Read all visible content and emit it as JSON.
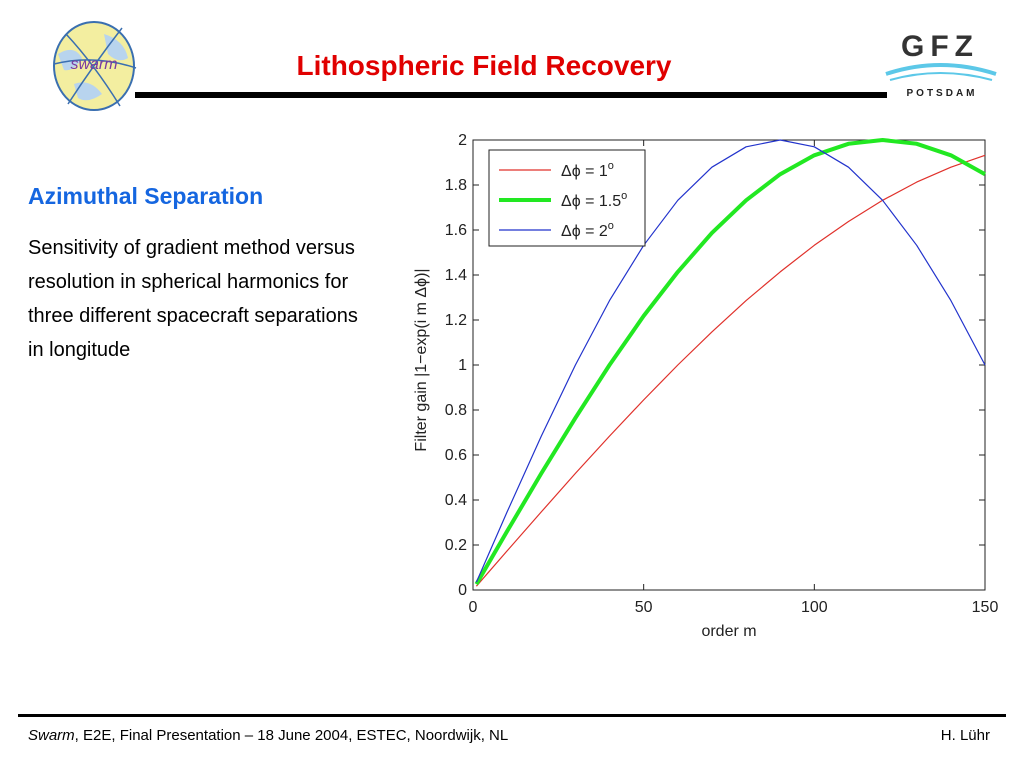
{
  "header": {
    "title": "Lithospheric Field Recovery",
    "logo_left_text": "swarm",
    "logo_right_text": "GFZ",
    "logo_right_subtext": "POTSDAM"
  },
  "content": {
    "heading": "Azimuthal Separation",
    "body": "Sensitivity of gradient method versus resolution in spherical harmonics for three different spacecraft separations in longitude"
  },
  "footer": {
    "left_italic": "Swarm",
    "left_rest": ", E2E, Final Presentation – 18 June 2004, ESTEC, Noordwijk, NL",
    "right": "H. Lühr"
  },
  "chart_data": {
    "type": "line",
    "title": "",
    "xlabel": "order m",
    "ylabel": "Filter gain |1−exp(i m Δϕ)|",
    "xlim": [
      0,
      150
    ],
    "ylim": [
      0,
      2
    ],
    "xticks": [
      "0",
      "50",
      "100",
      "150"
    ],
    "yticks": [
      "0",
      "0.2",
      "0.4",
      "0.6",
      "0.8",
      "1",
      "1.2",
      "1.4",
      "1.6",
      "1.8",
      "2"
    ],
    "grid": false,
    "legend_position": "top-left",
    "x": [
      1,
      10,
      20,
      30,
      40,
      50,
      60,
      70,
      80,
      90,
      100,
      110,
      120,
      130,
      140,
      150
    ],
    "series": [
      {
        "name": "Δϕ = 1°",
        "color": "#e0312b",
        "values": [
          0.017,
          0.174,
          0.347,
          0.518,
          0.684,
          0.845,
          1.0,
          1.147,
          1.286,
          1.414,
          1.532,
          1.638,
          1.732,
          1.813,
          1.879,
          1.932
        ]
      },
      {
        "name": "Δϕ = 1.5°",
        "color": "#22e822",
        "values": [
          0.026,
          0.261,
          0.518,
          0.765,
          1.0,
          1.218,
          1.414,
          1.587,
          1.732,
          1.848,
          1.932,
          1.983,
          2.0,
          1.983,
          1.932,
          1.848
        ]
      },
      {
        "name": "Δϕ = 2°",
        "color": "#2233cc",
        "values": [
          0.035,
          0.347,
          0.684,
          1.0,
          1.286,
          1.532,
          1.732,
          1.879,
          1.97,
          2.0,
          1.97,
          1.879,
          1.732,
          1.532,
          1.286,
          1.0
        ]
      }
    ],
    "legend": [
      {
        "label": "Δϕ = 1",
        "sup": "o"
      },
      {
        "label": "Δϕ = 1.5",
        "sup": "o"
      },
      {
        "label": "Δϕ = 2",
        "sup": "o"
      }
    ]
  }
}
